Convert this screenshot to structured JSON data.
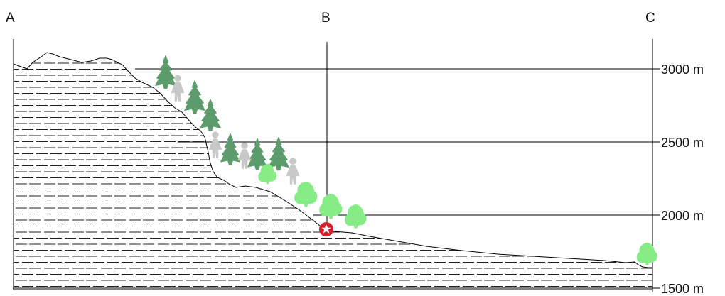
{
  "profile_points": {
    "A": "A",
    "B": "B",
    "C": "C"
  },
  "elevation_axis": {
    "ticks": [
      {
        "value": 3000,
        "label": "3000 m"
      },
      {
        "value": 2500,
        "label": "2500 m"
      },
      {
        "value": 2000,
        "label": "2000 m"
      },
      {
        "value": 1500,
        "label": "1500 m"
      }
    ]
  },
  "colors": {
    "rock_hatch": "#222222",
    "terrain_outline": "#000000",
    "conifer_dark": "#5c9b6c",
    "deciduous_light": "#86ec86",
    "human_figure": "#c8c8c8",
    "marker_star": "#d81e2a"
  },
  "legend_icons": {
    "conifer": "dark-green-tree-icon",
    "broadleaf": "light-green-tree-icon",
    "person": "person-icon",
    "marker": "red-star-marker-icon"
  }
}
